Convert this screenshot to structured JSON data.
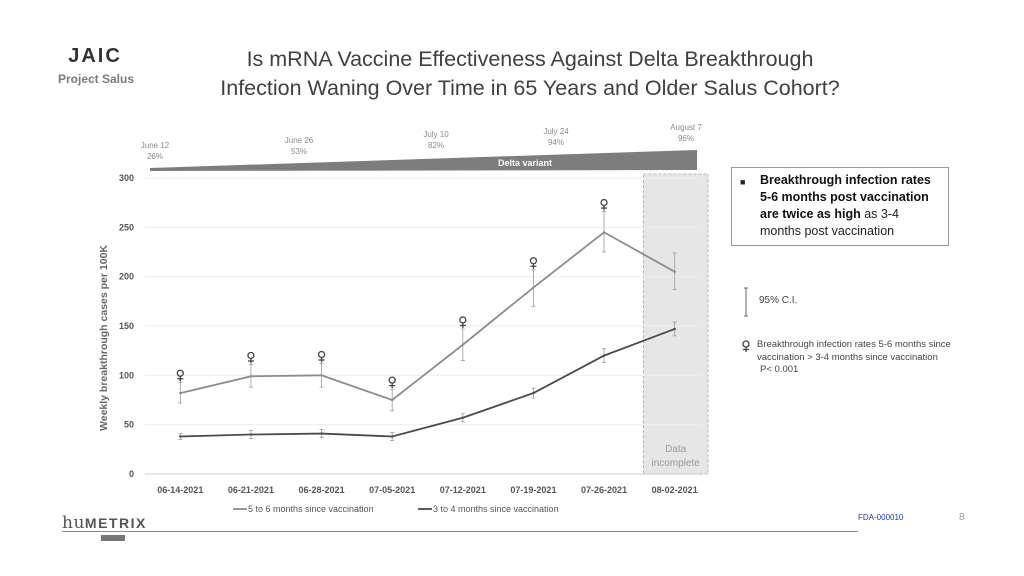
{
  "header": {
    "logo_text": "JAIC",
    "logo_subtitle": "Project Salus",
    "title_line1": "Is mRNA Vaccine Effectiveness Against Delta Breakthrough",
    "title_line2": "Infection Waning Over Time in 65 Years and Older Salus Cohort?"
  },
  "delta_banner": {
    "label": "Delta variant",
    "milestones": [
      {
        "date": "June 12",
        "pct": "26%"
      },
      {
        "date": "June 26",
        "pct": "53%"
      },
      {
        "date": "July 10",
        "pct": "82%"
      },
      {
        "date": "July 24",
        "pct": "94%"
      },
      {
        "date": "August 7",
        "pct": "96%"
      }
    ]
  },
  "chart_data": {
    "type": "line",
    "ylabel": "Weekly breakthrough cases per 100K",
    "ylim": [
      0,
      300
    ],
    "yticks": [
      0,
      50,
      100,
      150,
      200,
      250,
      300
    ],
    "categories": [
      "06-14-2021",
      "06-21-2021",
      "06-28-2021",
      "07-05-2021",
      "07-12-2021",
      "07-19-2021",
      "07-26-2021",
      "08-02-2021"
    ],
    "series": [
      {
        "name": "5 to 6 months since vaccination",
        "color": "#8c8c8c",
        "values": [
          82,
          99,
          100,
          75,
          131,
          189,
          245,
          205
        ],
        "ci_low": [
          72,
          88,
          88,
          64,
          115,
          170,
          225,
          187
        ],
        "ci_high": [
          93,
          111,
          112,
          86,
          147,
          207,
          266,
          224
        ],
        "significance_marker": [
          true,
          true,
          true,
          true,
          true,
          true,
          true,
          false
        ]
      },
      {
        "name": "3 to 4 months since vaccination",
        "color": "#4a4a4a",
        "values": [
          38,
          40,
          41,
          38,
          57,
          82,
          120,
          147
        ],
        "ci_low": [
          35,
          36,
          37,
          34,
          53,
          77,
          113,
          140
        ],
        "ci_high": [
          41,
          44,
          45,
          42,
          61,
          87,
          127,
          154
        ],
        "significance_marker": [
          false,
          false,
          false,
          false,
          false,
          false,
          false,
          false
        ]
      }
    ],
    "shaded_region": {
      "category": "08-02-2021",
      "label_line1": "Data",
      "label_line2": "incomplete"
    },
    "grid": true,
    "legend": "bottom"
  },
  "note": {
    "bold1": "Breakthrough infection rates 5-6 months post vaccination are twice as high",
    "rest": " as 3-4 months post vaccination"
  },
  "legend_extra": {
    "ci_label": "95% C.I.",
    "symbol_text": "Breakthrough infection rates 5-6 months since vaccination > 3-4 months since vaccination",
    "p_value": "P< 0.001"
  },
  "footer": {
    "brand_hu": "hu",
    "brand_metrix": "METRIX",
    "doc_id": "FDA-000010",
    "page": "8"
  }
}
